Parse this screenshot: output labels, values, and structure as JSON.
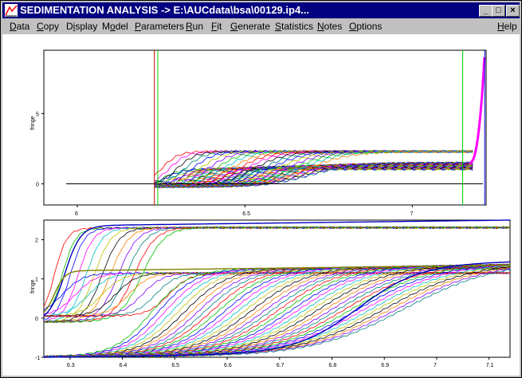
{
  "window": {
    "title": "SEDIMENTATION ANALYSIS -> E:\\AUCdata\\bsa\\00129.ip4...",
    "min_glyph": "_",
    "max_glyph": "□",
    "close_glyph": "×"
  },
  "menu": [
    {
      "label": "Data",
      "u": "D"
    },
    {
      "label": "Copy",
      "u": "C"
    },
    {
      "label": "Display",
      "u": "i"
    },
    {
      "label": "Model",
      "u": "o"
    },
    {
      "label": "Parameters",
      "u": "P"
    },
    {
      "label": "Run",
      "u": "R"
    },
    {
      "label": "Fit",
      "u": "F"
    },
    {
      "label": "Generate",
      "u": "G"
    },
    {
      "label": "Statistics",
      "u": "S"
    },
    {
      "label": "Notes",
      "u": "N"
    },
    {
      "label": "Options",
      "u": "O"
    },
    {
      "label": "Help",
      "u": "H"
    }
  ],
  "colors": {
    "title_bg": "#000080",
    "series": [
      "#ff0000",
      "#00c000",
      "#0000ff",
      "#ff00ff",
      "#00c0c0",
      "#c0c000",
      "#000000",
      "#ff8000",
      "#8000ff",
      "#008080"
    ],
    "cursor_red": "#c00000",
    "cursor_green": "#00d000",
    "cursor_blue": "#0000ff"
  },
  "chart_data": [
    {
      "type": "line",
      "ylabel": "fringe",
      "xlim": [
        5.9,
        7.22
      ],
      "ylim": [
        -1.5,
        9.5
      ],
      "x_ticks": [
        "6",
        "6.5",
        "7"
      ],
      "y_ticks": [
        "0",
        "5"
      ],
      "cursors": {
        "red": 6.23,
        "green_left": 6.24,
        "green_right": 7.15,
        "blue": 7.23
      },
      "baseline": {
        "x_start": 5.9,
        "x_end": 7.22,
        "y": 0
      },
      "profiles": {
        "n_scans": 60,
        "plateau_top": 2.3,
        "plateau_mid": 1.1,
        "meniscus": 6.23,
        "base": 7.22
      }
    },
    {
      "type": "line",
      "ylabel": "fringe",
      "xlim": [
        6.25,
        7.14
      ],
      "ylim": [
        -1.0,
        2.5
      ],
      "x_ticks": [
        "6.3",
        "6.4",
        "6.5",
        "6.6",
        "6.7",
        "6.8",
        "6.9",
        "7",
        "7.1"
      ],
      "y_ticks": [
        "2",
        "1",
        "0",
        "-1"
      ],
      "profiles": {
        "n_scans": 60,
        "plateau_top": 2.3,
        "plateau_mid": 1.1
      }
    }
  ]
}
